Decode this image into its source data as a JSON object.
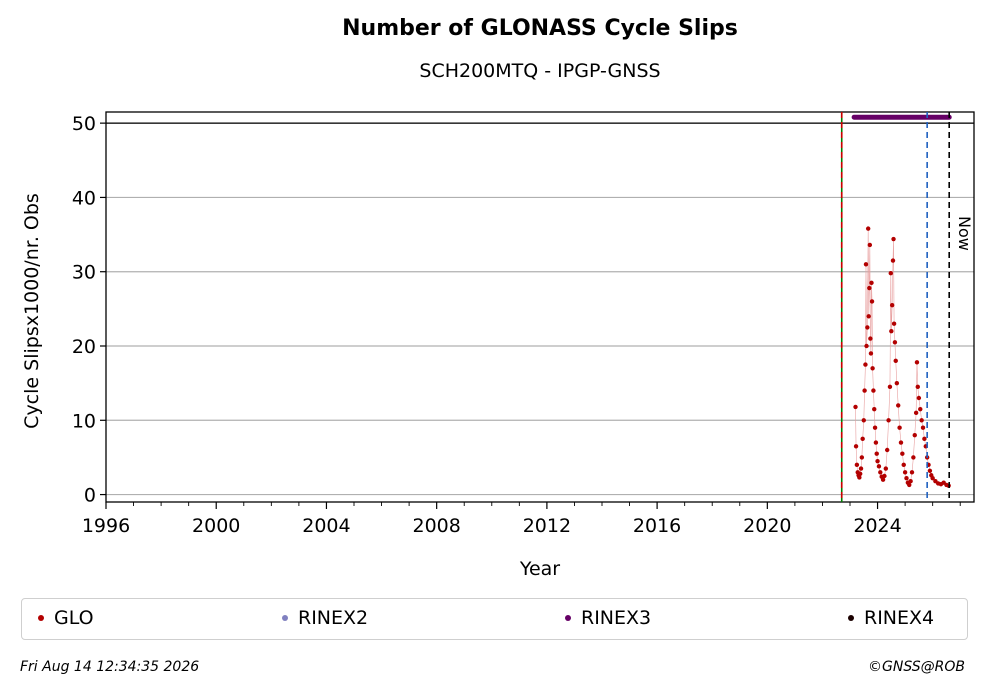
{
  "header": {
    "title": "Number of GLONASS Cycle Slips",
    "subtitle": "SCH200MTQ - IPGP-GNSS"
  },
  "footer": {
    "timestamp": "Fri Aug 14 12:34:35 2026",
    "copyright": "©GNSS@ROB"
  },
  "legend": {
    "items": [
      {
        "label": "GLO",
        "color": "#b30000"
      },
      {
        "label": "RINEX2",
        "color": "#8080c0"
      },
      {
        "label": "RINEX3",
        "color": "#660066"
      },
      {
        "label": "RINEX4",
        "color": "#1a0000"
      }
    ]
  },
  "chart_data": {
    "type": "scatter",
    "xlabel": "Year",
    "ylabel": "Cycle Slipsx1000/nr. Obs",
    "xlim": [
      1996,
      2027.5
    ],
    "ylim": [
      -1,
      51.5
    ],
    "x_ticks": [
      1996,
      2000,
      2004,
      2008,
      2012,
      2016,
      2020,
      2024
    ],
    "y_ticks": [
      0,
      10,
      20,
      30,
      40,
      50
    ],
    "grid": "horizontal",
    "reference_line_y": 50,
    "vertical_lines": [
      {
        "x": 2022.7,
        "style": "solid",
        "color": "#008000"
      },
      {
        "x": 2022.7,
        "style": "dashed",
        "color": "#cc0000"
      },
      {
        "x": 2025.8,
        "style": "dashed",
        "color": "#1f5fbf"
      },
      {
        "x": 2026.6,
        "style": "dashed",
        "color": "#000000",
        "label": "Now"
      }
    ],
    "rinex3_band": {
      "x_start": 2023.15,
      "x_end": 2026.6,
      "y": 50.8
    },
    "series": [
      {
        "name": "GLO",
        "color": "#b30000",
        "points": [
          [
            2023.2,
            11.8
          ],
          [
            2023.22,
            6.5
          ],
          [
            2023.25,
            4.0
          ],
          [
            2023.28,
            3.0
          ],
          [
            2023.31,
            2.6
          ],
          [
            2023.34,
            2.3
          ],
          [
            2023.37,
            2.8
          ],
          [
            2023.4,
            3.5
          ],
          [
            2023.43,
            5.0
          ],
          [
            2023.46,
            7.5
          ],
          [
            2023.5,
            10.0
          ],
          [
            2023.53,
            14.0
          ],
          [
            2023.56,
            17.5
          ],
          [
            2023.58,
            31.0
          ],
          [
            2023.6,
            20.0
          ],
          [
            2023.63,
            22.5
          ],
          [
            2023.66,
            35.8
          ],
          [
            2023.68,
            24.0
          ],
          [
            2023.7,
            27.8
          ],
          [
            2023.72,
            33.6
          ],
          [
            2023.74,
            21.0
          ],
          [
            2023.76,
            19.0
          ],
          [
            2023.78,
            28.5
          ],
          [
            2023.8,
            26.0
          ],
          [
            2023.82,
            17.0
          ],
          [
            2023.85,
            14.0
          ],
          [
            2023.88,
            11.5
          ],
          [
            2023.91,
            9.0
          ],
          [
            2023.94,
            7.0
          ],
          [
            2023.97,
            5.5
          ],
          [
            2024.0,
            4.5
          ],
          [
            2024.05,
            3.8
          ],
          [
            2024.1,
            3.0
          ],
          [
            2024.15,
            2.4
          ],
          [
            2024.2,
            2.0
          ],
          [
            2024.25,
            2.5
          ],
          [
            2024.3,
            3.5
          ],
          [
            2024.35,
            6.0
          ],
          [
            2024.4,
            10.0
          ],
          [
            2024.45,
            14.5
          ],
          [
            2024.48,
            29.8
          ],
          [
            2024.5,
            22.0
          ],
          [
            2024.53,
            25.5
          ],
          [
            2024.56,
            31.5
          ],
          [
            2024.58,
            34.4
          ],
          [
            2024.6,
            23.0
          ],
          [
            2024.63,
            20.5
          ],
          [
            2024.66,
            18.0
          ],
          [
            2024.7,
            15.0
          ],
          [
            2024.75,
            12.0
          ],
          [
            2024.8,
            9.0
          ],
          [
            2024.85,
            7.0
          ],
          [
            2024.9,
            5.5
          ],
          [
            2024.95,
            4.0
          ],
          [
            2025.0,
            3.0
          ],
          [
            2025.05,
            2.2
          ],
          [
            2025.1,
            1.6
          ],
          [
            2025.15,
            1.3
          ],
          [
            2025.2,
            1.8
          ],
          [
            2025.25,
            3.0
          ],
          [
            2025.3,
            5.0
          ],
          [
            2025.35,
            8.0
          ],
          [
            2025.4,
            11.0
          ],
          [
            2025.43,
            17.8
          ],
          [
            2025.46,
            14.5
          ],
          [
            2025.5,
            13.0
          ],
          [
            2025.55,
            11.5
          ],
          [
            2025.6,
            10.0
          ],
          [
            2025.65,
            9.0
          ],
          [
            2025.7,
            7.5
          ],
          [
            2025.75,
            6.5
          ],
          [
            2025.8,
            5.0
          ],
          [
            2025.85,
            4.0
          ],
          [
            2025.9,
            3.2
          ],
          [
            2025.95,
            2.6
          ],
          [
            2026.0,
            2.2
          ],
          [
            2026.1,
            1.8
          ],
          [
            2026.2,
            1.5
          ],
          [
            2026.3,
            1.4
          ],
          [
            2026.4,
            1.6
          ],
          [
            2026.5,
            1.3
          ],
          [
            2026.58,
            1.2
          ]
        ]
      }
    ]
  }
}
